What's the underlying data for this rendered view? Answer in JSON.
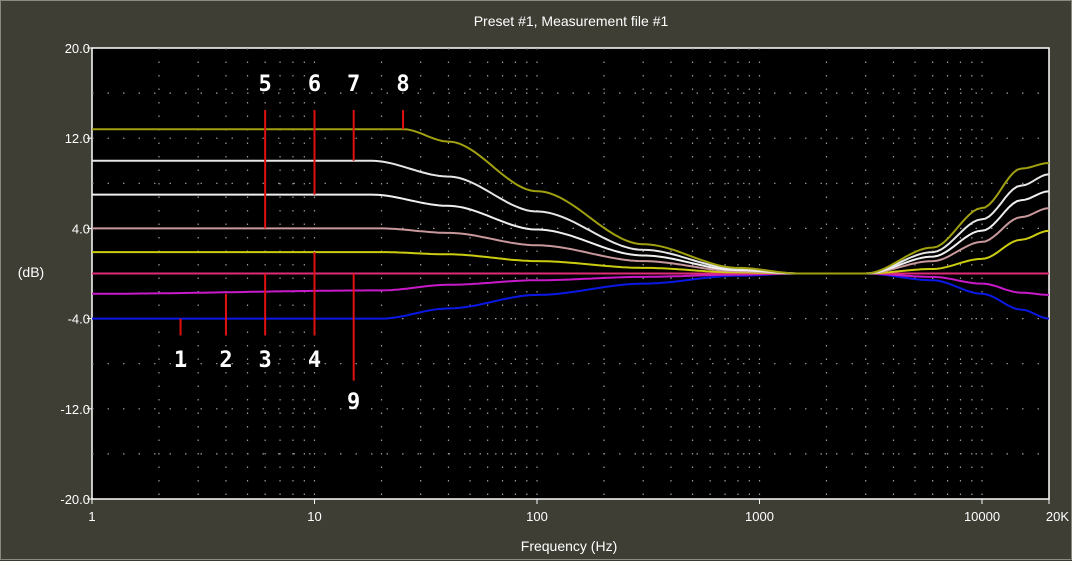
{
  "chart_data": {
    "type": "line",
    "title": "Preset #1, Measurement file #1",
    "xlabel": "Frequency (Hz)",
    "ylabel": "(dB)",
    "x_scale": "log",
    "xlim": [
      1,
      20000
    ],
    "ylim": [
      -20,
      20
    ],
    "x_ticks": [
      {
        "value": 1,
        "label": "1"
      },
      {
        "value": 10,
        "label": "10"
      },
      {
        "value": 100,
        "label": "100"
      },
      {
        "value": 1000,
        "label": "1000"
      },
      {
        "value": 10000,
        "label": "10000"
      },
      {
        "value": 20000,
        "label": "20K"
      }
    ],
    "y_ticks": [
      {
        "value": 20,
        "label": "20.0"
      },
      {
        "value": 12,
        "label": "12.0"
      },
      {
        "value": 4,
        "label": "4.0"
      },
      {
        "value": -4,
        "label": "-4.0"
      },
      {
        "value": -12,
        "label": "-12.0"
      },
      {
        "value": -20,
        "label": "-20.0"
      }
    ],
    "grid": "dotted",
    "background": "#000000",
    "series": [
      {
        "color": "#0a18e6",
        "points": [
          [
            1,
            -4
          ],
          [
            20,
            -4
          ],
          [
            40,
            -3.1
          ],
          [
            100,
            -1.9
          ],
          [
            300,
            -0.9
          ],
          [
            800,
            -0.2
          ],
          [
            1500,
            0
          ],
          [
            3000,
            0
          ],
          [
            6000,
            -0.6
          ],
          [
            10000,
            -1.8
          ],
          [
            15000,
            -3.2
          ],
          [
            20000,
            -4
          ]
        ]
      },
      {
        "color": "#c81ac8",
        "points": [
          [
            1,
            -1.8
          ],
          [
            20,
            -1.5
          ],
          [
            40,
            -1.0
          ],
          [
            100,
            -0.6
          ],
          [
            300,
            -0.3
          ],
          [
            800,
            -0.1
          ],
          [
            1500,
            0
          ],
          [
            3000,
            0
          ],
          [
            6000,
            -0.3
          ],
          [
            10000,
            -0.9
          ],
          [
            15000,
            -1.7
          ],
          [
            20000,
            -1.9
          ]
        ]
      },
      {
        "color": "#dc2c78",
        "points": [
          [
            1,
            0
          ],
          [
            20000,
            0
          ]
        ]
      },
      {
        "color": "#cccc10",
        "points": [
          [
            1,
            1.9
          ],
          [
            20,
            1.9
          ],
          [
            40,
            1.7
          ],
          [
            100,
            1.1
          ],
          [
            300,
            0.5
          ],
          [
            800,
            0.1
          ],
          [
            1500,
            0
          ],
          [
            3000,
            0
          ],
          [
            6000,
            0.4
          ],
          [
            10000,
            1.3
          ],
          [
            15000,
            3.0
          ],
          [
            20000,
            3.8
          ]
        ]
      },
      {
        "color": "#c8989c",
        "points": [
          [
            1,
            4
          ],
          [
            20,
            4
          ],
          [
            40,
            3.6
          ],
          [
            100,
            2.5
          ],
          [
            300,
            1.1
          ],
          [
            800,
            0.2
          ],
          [
            1500,
            0
          ],
          [
            3000,
            0
          ],
          [
            6000,
            1.1
          ],
          [
            10000,
            2.8
          ],
          [
            15000,
            5.0
          ],
          [
            20000,
            5.8
          ]
        ]
      },
      {
        "color": "#f0f0f0",
        "points": [
          [
            1,
            7
          ],
          [
            18,
            7
          ],
          [
            40,
            6.0
          ],
          [
            100,
            3.9
          ],
          [
            300,
            1.6
          ],
          [
            800,
            0.3
          ],
          [
            1500,
            0
          ],
          [
            3000,
            0
          ],
          [
            6000,
            1.5
          ],
          [
            10000,
            3.8
          ],
          [
            15000,
            6.5
          ],
          [
            20000,
            7.3
          ]
        ]
      },
      {
        "color": "#e6e6e6",
        "points": [
          [
            1,
            10
          ],
          [
            18,
            10
          ],
          [
            40,
            8.6
          ],
          [
            100,
            5.5
          ],
          [
            300,
            2.1
          ],
          [
            800,
            0.4
          ],
          [
            1500,
            0
          ],
          [
            3000,
            0
          ],
          [
            6000,
            1.9
          ],
          [
            10000,
            4.8
          ],
          [
            15000,
            7.8
          ],
          [
            20000,
            8.8
          ]
        ]
      },
      {
        "color": "#a0a010",
        "points": [
          [
            1,
            12.8
          ],
          [
            25,
            12.8
          ],
          [
            40,
            11.7
          ],
          [
            100,
            7.3
          ],
          [
            300,
            2.6
          ],
          [
            800,
            0.5
          ],
          [
            1500,
            0
          ],
          [
            3000,
            0
          ],
          [
            6000,
            2.3
          ],
          [
            10000,
            5.8
          ],
          [
            15000,
            9.3
          ],
          [
            20000,
            9.8
          ]
        ]
      }
    ],
    "annotations": [
      {
        "label": "1",
        "x": 2.5,
        "y_from": -4,
        "y_to": -5.5,
        "label_y": -8.3
      },
      {
        "label": "2",
        "x": 4,
        "y_from": -1.8,
        "y_to": -5.5,
        "label_y": -8.3
      },
      {
        "label": "3",
        "x": 6,
        "y_from": 0,
        "y_to": -5.5,
        "label_y": -8.3
      },
      {
        "label": "4",
        "x": 10,
        "y_from": 1.9,
        "y_to": -5.5,
        "label_y": -8.3
      },
      {
        "label": "5",
        "x": 6,
        "y_from": 4,
        "y_to": 14.5,
        "label_y": 16.2
      },
      {
        "label": "6",
        "x": 10,
        "y_from": 7,
        "y_to": 14.5,
        "label_y": 16.2
      },
      {
        "label": "7",
        "x": 15,
        "y_from": 10,
        "y_to": 14.5,
        "label_y": 16.2
      },
      {
        "label": "8",
        "x": 25,
        "y_from": 12.8,
        "y_to": 14.5,
        "label_y": 16.2
      },
      {
        "label": "9",
        "x": 15,
        "y_from": 0,
        "y_to": -9.5,
        "label_y": -12
      }
    ]
  }
}
